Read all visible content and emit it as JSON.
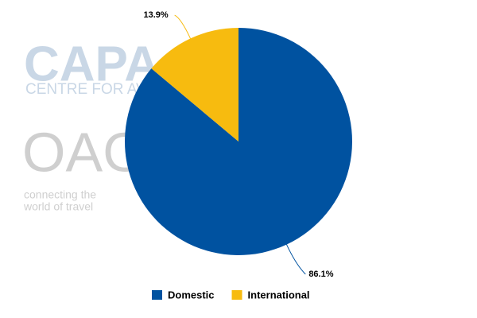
{
  "chart_data": {
    "type": "pie",
    "categories": [
      "Domestic",
      "International"
    ],
    "values": [
      86.1,
      13.9
    ],
    "value_labels": [
      "86.1%",
      "13.9%"
    ],
    "colors": [
      "#0052a0",
      "#f7bb0f"
    ],
    "legend": "bottom"
  },
  "watermark": {
    "capa": "CAPA",
    "capa_sub": "CENTRE FOR AV",
    "oag": "OAG",
    "tagline": [
      "connecting the",
      "world of travel"
    ]
  }
}
